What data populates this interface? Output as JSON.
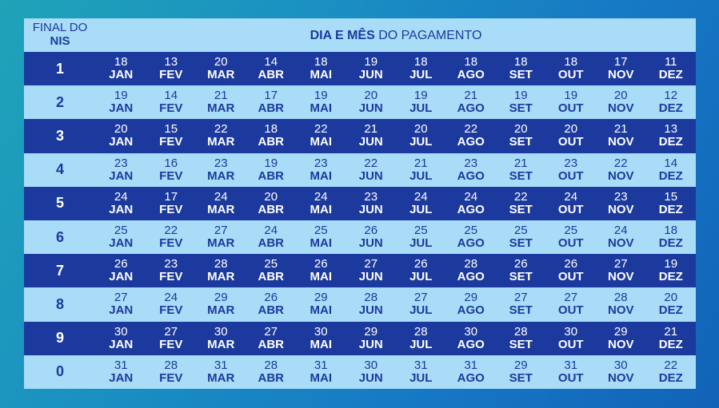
{
  "header": {
    "nis_line1": "FINAL DO",
    "nis_line2": "NIS",
    "title_bold": "DIA E MÊS",
    "title_rest": " DO PAGAMENTO"
  },
  "months": [
    "JAN",
    "FEV",
    "MAR",
    "ABR",
    "MAI",
    "JUN",
    "JUL",
    "AGO",
    "SET",
    "OUT",
    "NOV",
    "DEZ"
  ],
  "rows": [
    {
      "nis": "1",
      "days": [
        "18",
        "13",
        "20",
        "14",
        "18",
        "19",
        "18",
        "18",
        "18",
        "18",
        "17",
        "11"
      ]
    },
    {
      "nis": "2",
      "days": [
        "19",
        "14",
        "21",
        "17",
        "19",
        "20",
        "19",
        "21",
        "19",
        "19",
        "20",
        "12"
      ]
    },
    {
      "nis": "3",
      "days": [
        "20",
        "15",
        "22",
        "18",
        "22",
        "21",
        "20",
        "22",
        "20",
        "20",
        "21",
        "13"
      ]
    },
    {
      "nis": "4",
      "days": [
        "23",
        "16",
        "23",
        "19",
        "23",
        "22",
        "21",
        "23",
        "21",
        "23",
        "22",
        "14"
      ]
    },
    {
      "nis": "5",
      "days": [
        "24",
        "17",
        "24",
        "20",
        "24",
        "23",
        "24",
        "24",
        "22",
        "24",
        "23",
        "15"
      ]
    },
    {
      "nis": "6",
      "days": [
        "25",
        "22",
        "27",
        "24",
        "25",
        "26",
        "25",
        "25",
        "25",
        "25",
        "24",
        "18"
      ]
    },
    {
      "nis": "7",
      "days": [
        "26",
        "23",
        "28",
        "25",
        "26",
        "27",
        "26",
        "28",
        "26",
        "26",
        "27",
        "19"
      ]
    },
    {
      "nis": "8",
      "days": [
        "27",
        "24",
        "29",
        "26",
        "29",
        "28",
        "27",
        "29",
        "27",
        "27",
        "28",
        "20"
      ]
    },
    {
      "nis": "9",
      "days": [
        "30",
        "27",
        "30",
        "27",
        "30",
        "29",
        "28",
        "30",
        "28",
        "30",
        "29",
        "21"
      ]
    },
    {
      "nis": "0",
      "days": [
        "31",
        "28",
        "31",
        "28",
        "31",
        "30",
        "31",
        "31",
        "29",
        "31",
        "30",
        "22"
      ]
    }
  ]
}
